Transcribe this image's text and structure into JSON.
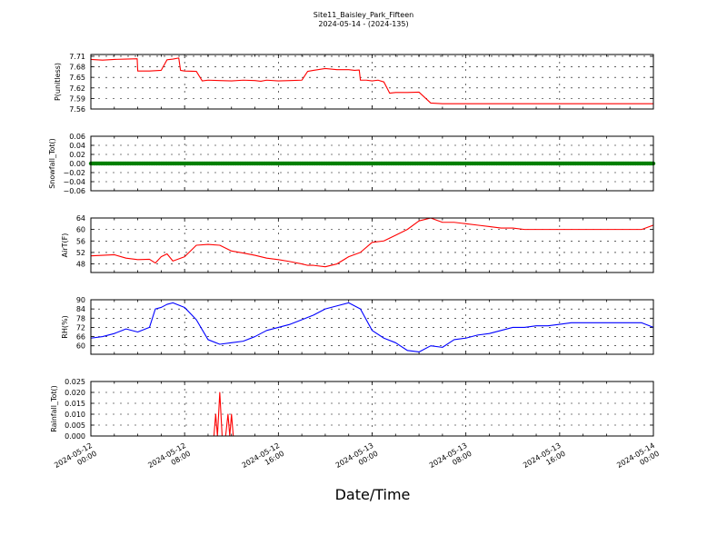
{
  "figure": {
    "title": "Site11_Baisley_Park_Fifteen",
    "subtitle": "2024-05-14 - (2024-135)",
    "xlabel": "Date/Time",
    "x_ticks": [
      {
        "line1": "2024-05-12",
        "line2": "00:00"
      },
      {
        "line1": "2024-05-12",
        "line2": "08:00"
      },
      {
        "line1": "2024-05-12",
        "line2": "16:00"
      },
      {
        "line1": "2024-05-13",
        "line2": "00:00"
      },
      {
        "line1": "2024-05-13",
        "line2": "08:00"
      },
      {
        "line1": "2024-05-13",
        "line2": "16:00"
      },
      {
        "line1": "2024-05-14",
        "line2": "00:00"
      }
    ]
  },
  "chart_data": [
    {
      "type": "line",
      "ylabel": "P(unitless)",
      "ylim": [
        7.56,
        7.715
      ],
      "yticks": [
        "7.56",
        "7.59",
        "7.62",
        "7.65",
        "7.68",
        "7.71"
      ],
      "grid": true,
      "color": "#ff0000",
      "x_hours": [
        0,
        2,
        4,
        6,
        7.9,
        8,
        10,
        12,
        13,
        14,
        15,
        15.3,
        16,
        18,
        19,
        20,
        22,
        24,
        26,
        28,
        29,
        30,
        32,
        34,
        36,
        37,
        38,
        40,
        42,
        44,
        45,
        45.8,
        46,
        47,
        48,
        49,
        50,
        51,
        52,
        54,
        56,
        58,
        60,
        62,
        64,
        66,
        68,
        70,
        72,
        74,
        76,
        76.5,
        78,
        80,
        82,
        83,
        83.5,
        84,
        86,
        88,
        90,
        92,
        94,
        96
      ],
      "values": [
        7.701,
        7.699,
        7.701,
        7.702,
        7.703,
        7.668,
        7.668,
        7.67,
        7.7,
        7.702,
        7.705,
        7.67,
        7.668,
        7.667,
        7.64,
        7.642,
        7.641,
        7.64,
        7.642,
        7.641,
        7.639,
        7.642,
        7.64,
        7.641,
        7.642,
        7.667,
        7.67,
        7.675,
        7.672,
        7.672,
        7.67,
        7.671,
        7.642,
        7.642,
        7.64,
        7.642,
        7.637,
        7.605,
        7.607,
        7.607,
        7.608,
        7.577,
        7.575,
        7.575,
        7.575,
        7.575,
        7.575,
        7.575,
        7.575,
        7.575,
        7.575,
        7.575,
        7.575,
        7.575,
        7.575,
        7.575,
        7.575,
        7.575,
        7.575,
        7.575,
        7.575,
        7.575,
        7.575,
        7.575
      ]
    },
    {
      "type": "scatter",
      "ylabel": "Snowfall_Tot()",
      "ylim": [
        -0.06,
        0.06
      ],
      "yticks": [
        "−0.06",
        "−0.04",
        "−0.02",
        "0.00",
        "0.02",
        "0.04",
        "0.06"
      ],
      "grid": true,
      "color": "#008000",
      "x_hours": [
        0,
        96
      ],
      "values": [
        0,
        0
      ]
    },
    {
      "type": "line",
      "ylabel": "AirT(F)",
      "ylim": [
        45,
        64
      ],
      "yticks": [
        "48",
        "52",
        "56",
        "60",
        "64"
      ],
      "grid": true,
      "color": "#ff0000",
      "x_hours": [
        0,
        2,
        4,
        6,
        8,
        10,
        11,
        12,
        13,
        14,
        16,
        18,
        20,
        22,
        24,
        26,
        28,
        30,
        32,
        34,
        36,
        37,
        38,
        40,
        42,
        44,
        46,
        48,
        50,
        52,
        54,
        56,
        58,
        60,
        62,
        64,
        66,
        68,
        70,
        72,
        74,
        76,
        78,
        80,
        82,
        84,
        86,
        88,
        90,
        92,
        94,
        96
      ],
      "values": [
        50.8,
        51,
        51.2,
        50,
        49.5,
        49.6,
        48.3,
        50.5,
        51.5,
        49,
        50.5,
        54.5,
        54.8,
        54.5,
        52.5,
        51.8,
        51,
        50,
        49.5,
        48.8,
        48,
        47.5,
        47.5,
        47,
        48,
        50.5,
        52,
        55.5,
        56,
        58,
        60,
        63,
        64,
        62.5,
        62.5,
        62,
        61.5,
        61,
        60.5,
        60.5,
        60,
        60,
        60,
        60,
        60,
        60,
        60,
        60,
        60,
        60,
        60,
        61.5
      ]
    },
    {
      "type": "line",
      "ylabel": "RH(%)",
      "ylim": [
        54.5,
        90
      ],
      "yticks": [
        "60",
        "66",
        "72",
        "78",
        "84",
        "90"
      ],
      "grid": true,
      "color": "#0000ff",
      "x_hours": [
        0,
        2,
        4,
        6,
        8,
        10,
        11,
        12,
        13,
        14,
        16,
        18,
        20,
        22,
        24,
        26,
        28,
        30,
        32,
        34,
        36,
        38,
        40,
        42,
        44,
        46,
        48,
        50,
        52,
        54,
        56,
        58,
        60,
        62,
        64,
        66,
        68,
        70,
        72,
        74,
        76,
        78,
        80,
        82,
        84,
        86,
        88,
        90,
        92,
        94,
        96
      ],
      "values": [
        65,
        66,
        68,
        71,
        69,
        72,
        84,
        85,
        87,
        88,
        85,
        77,
        64,
        61,
        62,
        63,
        66,
        70,
        72,
        74,
        77,
        80,
        84,
        86,
        88,
        84,
        70,
        65,
        62,
        57,
        56,
        60,
        59,
        64,
        65,
        67,
        68,
        70,
        72,
        72,
        73,
        73,
        74,
        75,
        75,
        75,
        75,
        75,
        75,
        75,
        72
      ]
    },
    {
      "type": "line",
      "ylabel": "Rainfall_Tot()",
      "ylim": [
        0,
        0.025
      ],
      "yticks": [
        "0.000",
        "0.005",
        "0.010",
        "0.015",
        "0.020",
        "0.025"
      ],
      "grid": true,
      "color": "#ff0000",
      "x_hours": [
        0,
        21,
        21.3,
        21.6,
        22,
        22.4,
        22.7,
        23,
        23.4,
        23.7,
        24,
        24.3,
        24.6,
        24.9,
        25,
        96
      ],
      "values": [
        0,
        0,
        0.01,
        0,
        0.02,
        0,
        0,
        0,
        0.01,
        0,
        0.01,
        0,
        0,
        0,
        0,
        0
      ]
    }
  ]
}
